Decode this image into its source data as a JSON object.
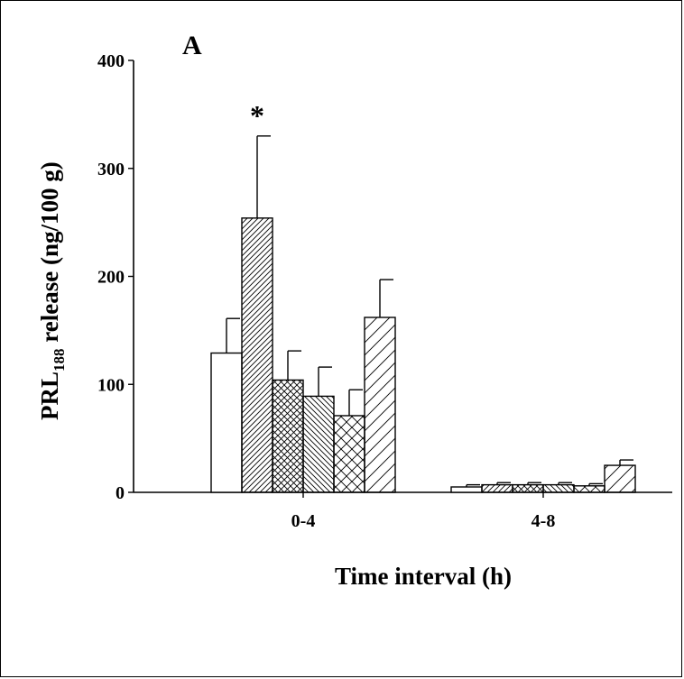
{
  "chart_data": {
    "type": "bar",
    "panel_label": "A",
    "categories": [
      "0-4",
      "4-8"
    ],
    "xlabel": "Time interval (h)",
    "ylabel": {
      "prefix": "PRL",
      "subscript": "188",
      "suffix": " release (ng/100 g)"
    },
    "ylim": [
      0,
      400
    ],
    "yticks": [
      0,
      100,
      200,
      300,
      400
    ],
    "grid": false,
    "legend": "none",
    "series": [
      {
        "pattern": "none",
        "values": [
          129,
          5
        ],
        "errors": [
          32,
          2
        ]
      },
      {
        "pattern": "dense-diagonal",
        "values": [
          254,
          7
        ],
        "errors": [
          76,
          2
        ]
      },
      {
        "pattern": "crosshatch",
        "values": [
          104,
          7
        ],
        "errors": [
          27,
          2
        ]
      },
      {
        "pattern": "back-diagonal",
        "values": [
          89,
          7
        ],
        "errors": [
          27,
          2
        ]
      },
      {
        "pattern": "wide-crosshatch",
        "values": [
          71,
          6
        ],
        "errors": [
          24,
          2
        ]
      },
      {
        "pattern": "wide-diagonal",
        "values": [
          162,
          25
        ],
        "errors": [
          35,
          5
        ]
      }
    ],
    "annotations": [
      {
        "text": "*",
        "category": "0-4",
        "series_index": 1
      }
    ]
  }
}
